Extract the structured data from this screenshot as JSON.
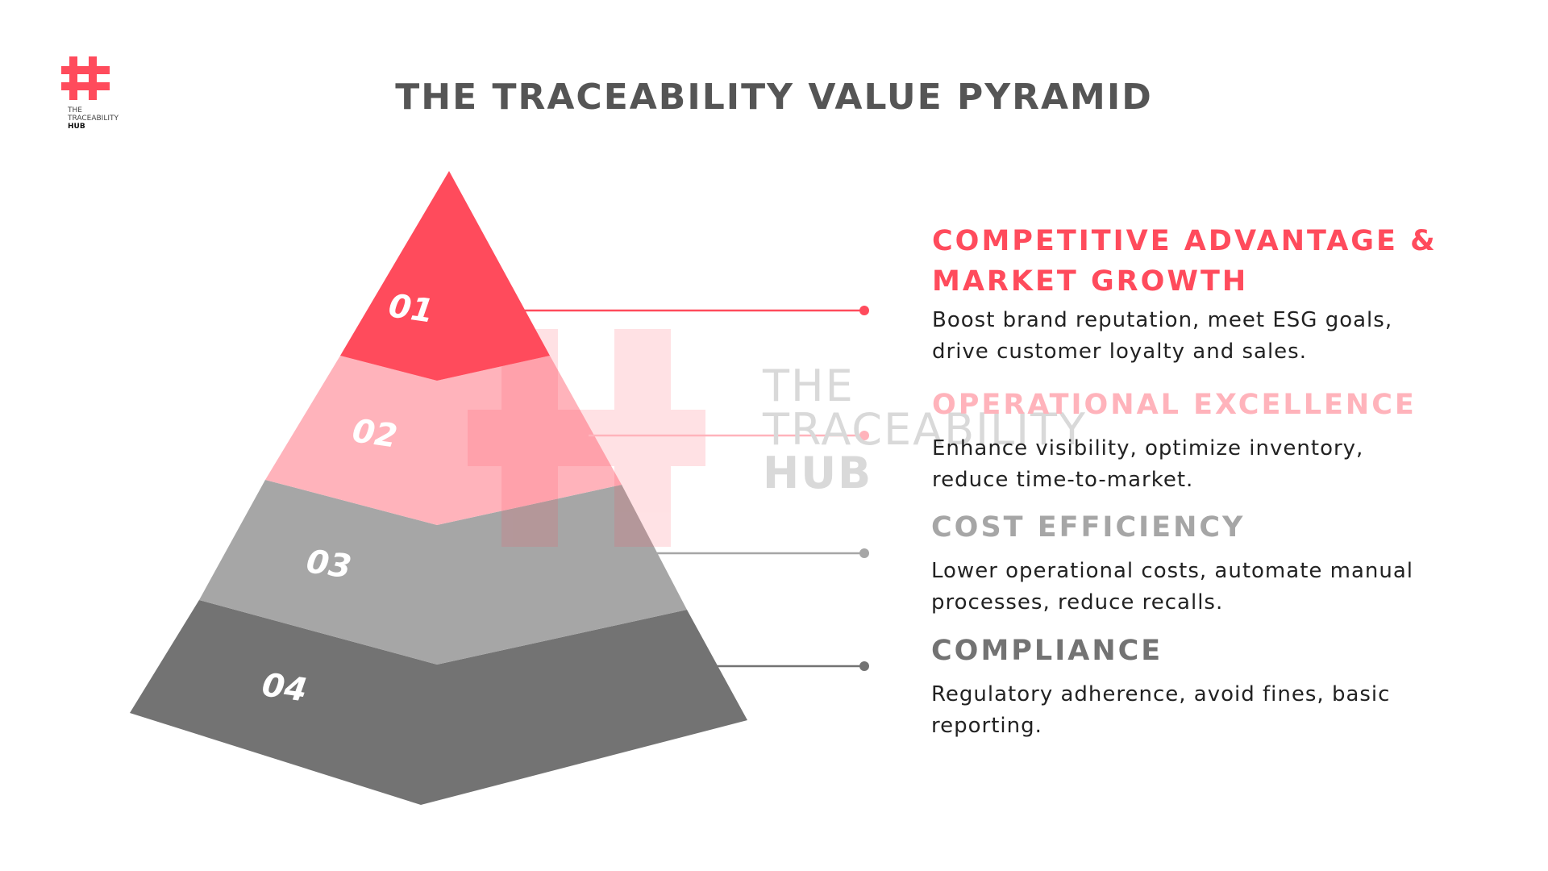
{
  "title": "THE TRACEABILITY VALUE PYRAMID",
  "logo": {
    "line1": "THE",
    "line2": "TRACEABILITY",
    "line3": "HUB"
  },
  "watermark": {
    "line1": "THE",
    "line2": "TRACEABILITY",
    "line3": "HUB"
  },
  "colors": {
    "red": "#ff4b5c",
    "pink": "#ffb3bb",
    "light_gray": "#a6a6a6",
    "dark_gray": "#737373",
    "text": "#222222",
    "title": "#555555"
  },
  "levels": [
    {
      "number": "01",
      "title": "COMPETITIVE ADVANTAGE & MARKET GROWTH",
      "description": "Boost brand reputation, meet ESG goals, drive customer loyalty and sales.",
      "fill": "#ff4b5c",
      "title_color": "#ff4b5c",
      "line_color": "#ff4b5c"
    },
    {
      "number": "02",
      "title": "OPERATIONAL EXCELLENCE",
      "description": "Enhance visibility, optimize inventory, reduce time-to-market.",
      "fill": "#ffb3bb",
      "title_color": "#ffb3bb",
      "line_color": "#ffb3bb"
    },
    {
      "number": "03",
      "title": "COST EFFICIENCY",
      "description": "Lower operational costs, automate manual processes, reduce recalls.",
      "fill": "#a6a6a6",
      "title_color": "#a6a6a6",
      "line_color": "#a6a6a6"
    },
    {
      "number": "04",
      "title": "COMPLIANCE",
      "description": "Regulatory adherence, avoid fines, basic reporting.",
      "fill": "#737373",
      "title_color": "#737373",
      "line_color": "#737373"
    }
  ]
}
